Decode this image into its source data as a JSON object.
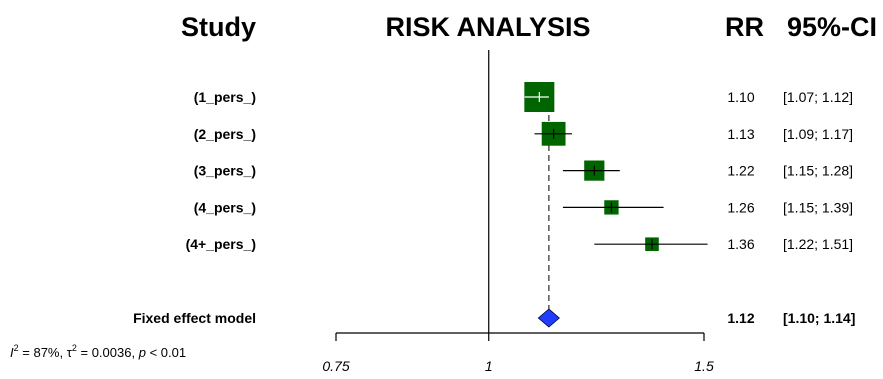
{
  "chart_data": {
    "type": "forest",
    "title": "RISK ANALYSIS",
    "headers": {
      "study": "Study",
      "rr": "RR",
      "ci": "95%-CI"
    },
    "studies": [
      {
        "label": "(1_pers_)",
        "rr": 1.1,
        "lo": 1.07,
        "hi": 1.12,
        "weight": 1.0,
        "rr_text": "1.10",
        "ci_text": "[1.07; 1.12]"
      },
      {
        "label": "(2_pers_)",
        "rr": 1.13,
        "lo": 1.09,
        "hi": 1.17,
        "weight": 0.55,
        "rr_text": "1.13",
        "ci_text": "[1.09; 1.17]"
      },
      {
        "label": "(3_pers_)",
        "rr": 1.22,
        "lo": 1.15,
        "hi": 1.28,
        "weight": 0.35,
        "rr_text": "1.22",
        "ci_text": "[1.15; 1.28]"
      },
      {
        "label": "(4_pers_)",
        "rr": 1.26,
        "lo": 1.15,
        "hi": 1.39,
        "weight": 0.12,
        "rr_text": "1.26",
        "ci_text": "[1.15; 1.39]"
      },
      {
        "label": "(4+_pers_)",
        "rr": 1.36,
        "lo": 1.22,
        "hi": 1.51,
        "weight": 0.1,
        "rr_text": "1.36",
        "ci_text": "[1.22; 1.51]"
      }
    ],
    "pooled": {
      "label": "Fixed effect model",
      "rr": 1.12,
      "lo": 1.1,
      "hi": 1.14,
      "rr_text": "1.12",
      "ci_text": "[1.10; 1.14]"
    },
    "x_axis": {
      "scale": "log",
      "ticks": [
        0.75,
        1,
        1.5
      ],
      "tick_labels": [
        "0.75",
        "1",
        "1.5"
      ],
      "reference": 1
    },
    "heterogeneity": {
      "i2": "87%",
      "tau2": "0.0036",
      "p": "< 0.01"
    },
    "colors": {
      "study_marker": "#006400",
      "pooled": "#1f3cff",
      "lines": "#000000"
    }
  }
}
